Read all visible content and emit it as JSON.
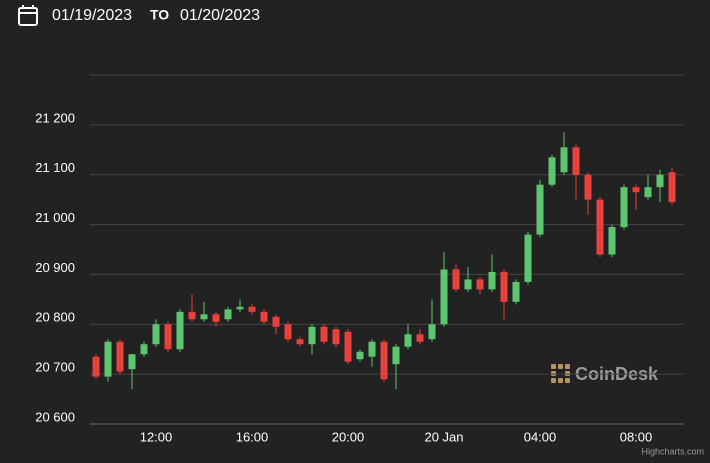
{
  "header": {
    "from": "01/19/2023",
    "to_label": "TO",
    "to": "01/20/2023"
  },
  "watermark": "CoinDesk",
  "credits": "Highcharts.com",
  "chart_data": {
    "type": "candlestick",
    "categories": [
      null,
      null,
      null,
      null,
      null,
      "12:00",
      null,
      null,
      null,
      null,
      null,
      null,
      null,
      "16:00",
      null,
      null,
      null,
      null,
      null,
      null,
      null,
      "20:00",
      null,
      null,
      null,
      null,
      null,
      null,
      null,
      "20 Jan",
      null,
      null,
      null,
      null,
      null,
      null,
      null,
      "04:00",
      null,
      null,
      null,
      null,
      null,
      null,
      null,
      "08:00",
      null,
      null,
      null
    ],
    "open": [
      20735,
      20695,
      20765,
      20710,
      20740,
      20760,
      20800,
      20750,
      20825,
      20810,
      20820,
      20810,
      20830,
      20835,
      20825,
      20815,
      20800,
      20770,
      20760,
      20795,
      20790,
      20785,
      20730,
      20735,
      20765,
      20720,
      20755,
      20780,
      20770,
      20800,
      20910,
      20870,
      20890,
      20870,
      20905,
      20845,
      20885,
      20980,
      21080,
      21105,
      21155,
      21100,
      21050,
      20940,
      20995,
      21075,
      21055,
      21075,
      21105
    ],
    "high": [
      20740,
      20770,
      20770,
      20740,
      20765,
      20810,
      20805,
      20830,
      20860,
      20845,
      20825,
      20835,
      20850,
      20840,
      20830,
      20820,
      20805,
      20775,
      20800,
      20800,
      20795,
      20790,
      20750,
      20770,
      20770,
      20760,
      20800,
      20790,
      20850,
      20945,
      20920,
      20915,
      20895,
      20940,
      20910,
      20890,
      20985,
      21090,
      21140,
      21185,
      21160,
      21105,
      21055,
      21000,
      21080,
      21080,
      21100,
      21110,
      21115
    ],
    "low": [
      20690,
      20685,
      20700,
      20670,
      20735,
      20755,
      20745,
      20745,
      20805,
      20805,
      20795,
      20805,
      20825,
      20820,
      20800,
      20780,
      20765,
      20755,
      20740,
      20760,
      20755,
      20720,
      20725,
      20715,
      20685,
      20670,
      20750,
      20760,
      20765,
      20795,
      20865,
      20865,
      20860,
      20865,
      20810,
      20840,
      20880,
      20975,
      21075,
      21100,
      21050,
      21020,
      20935,
      20935,
      20990,
      21030,
      21050,
      21045,
      21040
    ],
    "close": [
      20695,
      20765,
      20705,
      20740,
      20760,
      20800,
      20750,
      20825,
      20810,
      20820,
      20805,
      20830,
      20835,
      20825,
      20805,
      20795,
      20770,
      20760,
      20795,
      20765,
      20760,
      20725,
      20745,
      20765,
      20690,
      20755,
      20780,
      20765,
      20800,
      20910,
      20870,
      20890,
      20870,
      20905,
      20845,
      20885,
      20980,
      21080,
      21135,
      21155,
      21100,
      21050,
      20940,
      20995,
      21075,
      21065,
      21075,
      21100,
      21045
    ],
    "up_color": "#5cc56e",
    "down_color": "#e8403d",
    "ylim": [
      20600,
      21300
    ],
    "yticks": [
      {
        "value": 20600,
        "label": "20 600"
      },
      {
        "value": 20700,
        "label": "20 700"
      },
      {
        "value": 20800,
        "label": "20 800"
      },
      {
        "value": 20900,
        "label": "20 900"
      },
      {
        "value": 21000,
        "label": "21 000"
      },
      {
        "value": 21100,
        "label": "21 100"
      },
      {
        "value": 21200,
        "label": "21 200"
      }
    ],
    "grid": true
  }
}
